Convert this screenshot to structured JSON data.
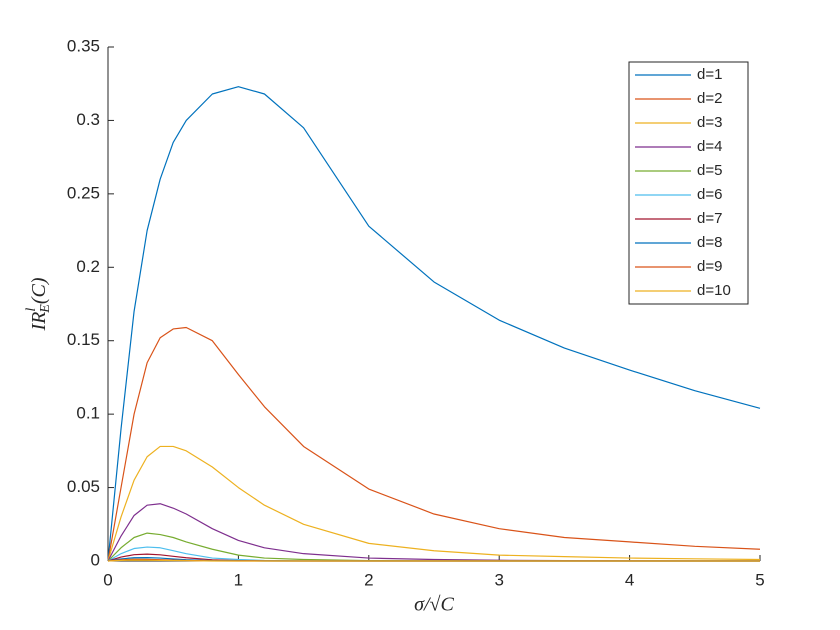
{
  "chart_data": {
    "type": "line",
    "xlabel": "σ/√C",
    "ylabel": {
      "base": "IR",
      "sup": "l",
      "sub": "E",
      "tail": "(C)"
    },
    "x": [
      0,
      0.1,
      0.2,
      0.3,
      0.4,
      0.5,
      0.6,
      0.8,
      1,
      1.2,
      1.5,
      2,
      2.5,
      3,
      3.5,
      4,
      4.5,
      5
    ],
    "xlim": [
      0,
      5
    ],
    "xticks": [
      0,
      1,
      2,
      3,
      4,
      5
    ],
    "ylim": [
      0,
      0.35
    ],
    "yticks": [
      0,
      0.05,
      0.1,
      0.15,
      0.2,
      0.25,
      0.3,
      0.35
    ],
    "legend": "northeast",
    "series": [
      {
        "name": "d=1",
        "color": "#0072BD",
        "values": [
          0,
          0.09,
          0.17,
          0.225,
          0.26,
          0.285,
          0.3,
          0.318,
          0.323,
          0.318,
          0.295,
          0.228,
          0.19,
          0.164,
          0.145,
          0.13,
          0.116,
          0.104
        ]
      },
      {
        "name": "d=2",
        "color": "#D95319",
        "values": [
          0,
          0.05,
          0.1,
          0.135,
          0.152,
          0.158,
          0.159,
          0.15,
          0.127,
          0.105,
          0.078,
          0.049,
          0.032,
          0.022,
          0.016,
          0.013,
          0.01,
          0.008
        ]
      },
      {
        "name": "d=3",
        "color": "#EDB120",
        "values": [
          0,
          0.03,
          0.055,
          0.071,
          0.078,
          0.078,
          0.075,
          0.064,
          0.05,
          0.038,
          0.025,
          0.012,
          0.007,
          0.004,
          0.003,
          0.002,
          0.0015,
          0.001
        ]
      },
      {
        "name": "d=4",
        "color": "#7E2F8E",
        "values": [
          0,
          0.017,
          0.031,
          0.038,
          0.039,
          0.036,
          0.032,
          0.022,
          0.014,
          0.009,
          0.005,
          0.002,
          0.001,
          0.0005,
          0.0003,
          0.0002,
          0.0001,
          0.0001
        ]
      },
      {
        "name": "d=5",
        "color": "#77AC30",
        "values": [
          0,
          0.009,
          0.016,
          0.019,
          0.018,
          0.016,
          0.013,
          0.008,
          0.004,
          0.002,
          0.001,
          0.0003,
          0.0001,
          0,
          0,
          0,
          0,
          0
        ]
      },
      {
        "name": "d=6",
        "color": "#4DBEEE",
        "values": [
          0,
          0.005,
          0.0085,
          0.0095,
          0.009,
          0.007,
          0.005,
          0.002,
          0.001,
          0.0004,
          0.0001,
          0,
          0,
          0,
          0,
          0,
          0,
          0
        ]
      },
      {
        "name": "d=7",
        "color": "#A2142F",
        "values": [
          0,
          0.0027,
          0.0043,
          0.0047,
          0.0042,
          0.0032,
          0.0022,
          0.0008,
          0.0003,
          0.0001,
          0,
          0,
          0,
          0,
          0,
          0,
          0,
          0
        ]
      },
      {
        "name": "d=8",
        "color": "#0072BD",
        "values": [
          0,
          0.0014,
          0.0022,
          0.0023,
          0.002,
          0.0014,
          0.0009,
          0.0003,
          0.0001,
          0,
          0,
          0,
          0,
          0,
          0,
          0,
          0,
          0
        ]
      },
      {
        "name": "d=9",
        "color": "#D95319",
        "values": [
          0,
          0.0008,
          0.0012,
          0.0011,
          0.0009,
          0.0006,
          0.0004,
          0.0001,
          0,
          0,
          0,
          0,
          0,
          0,
          0,
          0,
          0,
          0
        ]
      },
      {
        "name": "d=10",
        "color": "#EDB120",
        "values": [
          0,
          0.0004,
          0.0006,
          0.0005,
          0.0004,
          0.0003,
          0.0002,
          0,
          0,
          0,
          0,
          0,
          0,
          0,
          0,
          0,
          0,
          0
        ]
      }
    ]
  }
}
